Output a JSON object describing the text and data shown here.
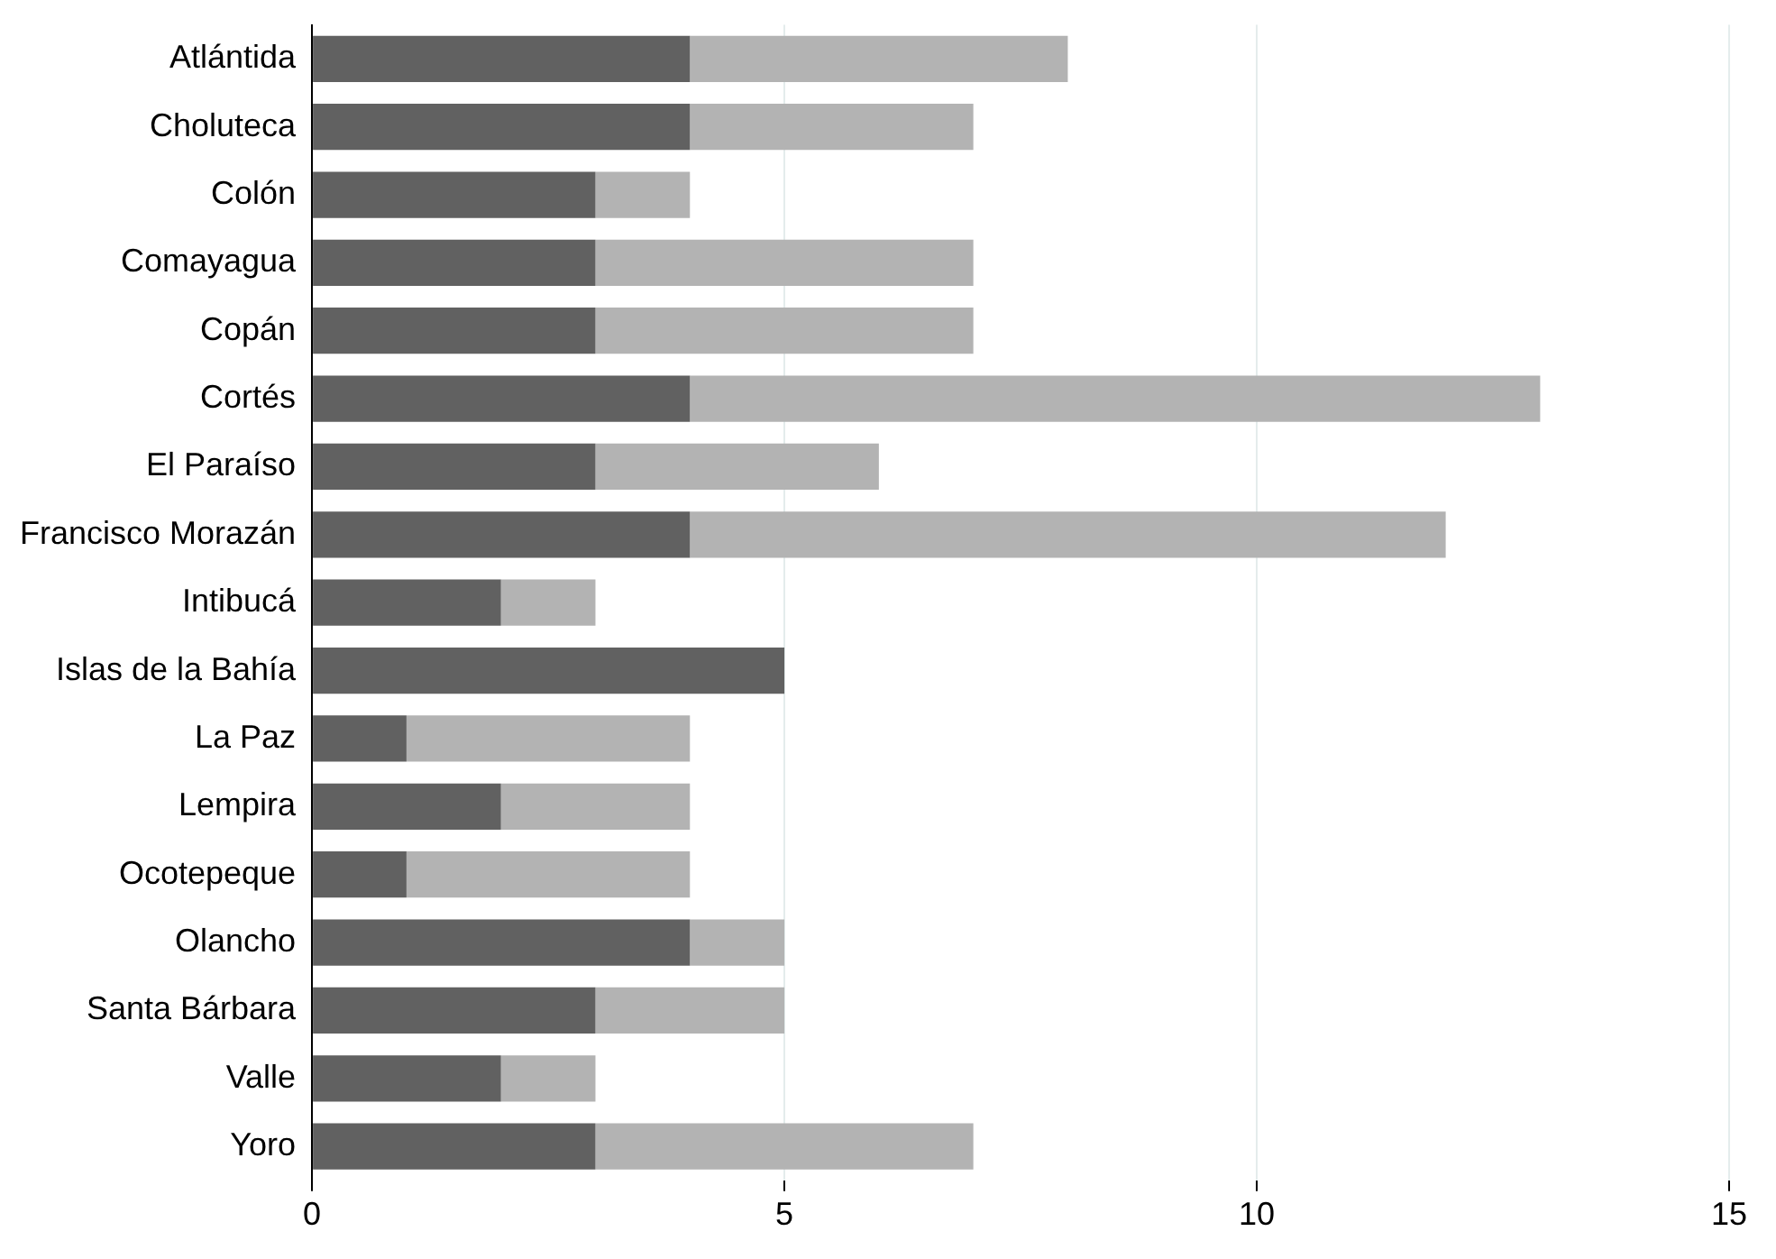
{
  "chart_data": {
    "type": "bar",
    "orientation": "horizontal",
    "stacked": true,
    "grid": "x",
    "legend": false,
    "categories": [
      "Atlántida",
      "Choluteca",
      "Colón",
      "Comayagua",
      "Copán",
      "Cortés",
      "El Paraíso",
      "Francisco Morazán",
      "Intibucá",
      "Islas de la Bahía",
      "La Paz",
      "Lempira",
      "Ocotepeque",
      "Olancho",
      "Santa Bárbara",
      "Valle",
      "Yoro"
    ],
    "series": [
      {
        "color": "#616161",
        "values": [
          4,
          4,
          3,
          3,
          3,
          4,
          3,
          4,
          2,
          5,
          1,
          2,
          1,
          4,
          3,
          2,
          3
        ]
      },
      {
        "color": "#b3b3b3",
        "values": [
          4,
          3,
          1,
          4,
          4,
          9,
          3,
          8,
          1,
          0,
          3,
          2,
          3,
          1,
          2,
          1,
          4
        ]
      }
    ],
    "xlim": [
      0,
      15
    ],
    "xticks": [
      0,
      5,
      10,
      15
    ]
  }
}
